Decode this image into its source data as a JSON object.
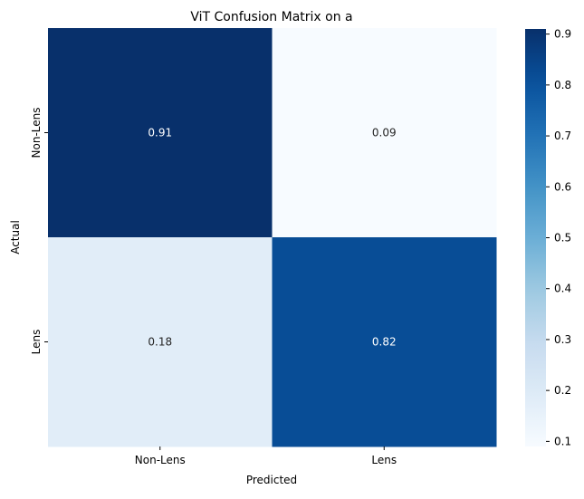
{
  "chart_data": {
    "type": "heatmap",
    "title": "ViT Confusion Matrix on a",
    "xlabel": "Predicted",
    "ylabel": "Actual",
    "x_categories": [
      "Non-Lens",
      "Lens"
    ],
    "y_categories": [
      "Non-Lens",
      "Lens"
    ],
    "values": [
      [
        0.91,
        0.09
      ],
      [
        0.18,
        0.82
      ]
    ],
    "annotations": [
      [
        "0.91",
        "0.09"
      ],
      [
        "0.18",
        "0.82"
      ]
    ],
    "colormap": "Blues",
    "colorbar": {
      "range": [
        0.09,
        0.91
      ],
      "ticks": [
        0.1,
        0.2,
        0.3,
        0.4,
        0.5,
        0.6,
        0.7,
        0.8,
        0.9
      ],
      "tick_labels": [
        "0.1",
        "0.2",
        "0.3",
        "0.4",
        "0.5",
        "0.6",
        "0.7",
        "0.8",
        "0.9"
      ]
    },
    "grid": false
  }
}
